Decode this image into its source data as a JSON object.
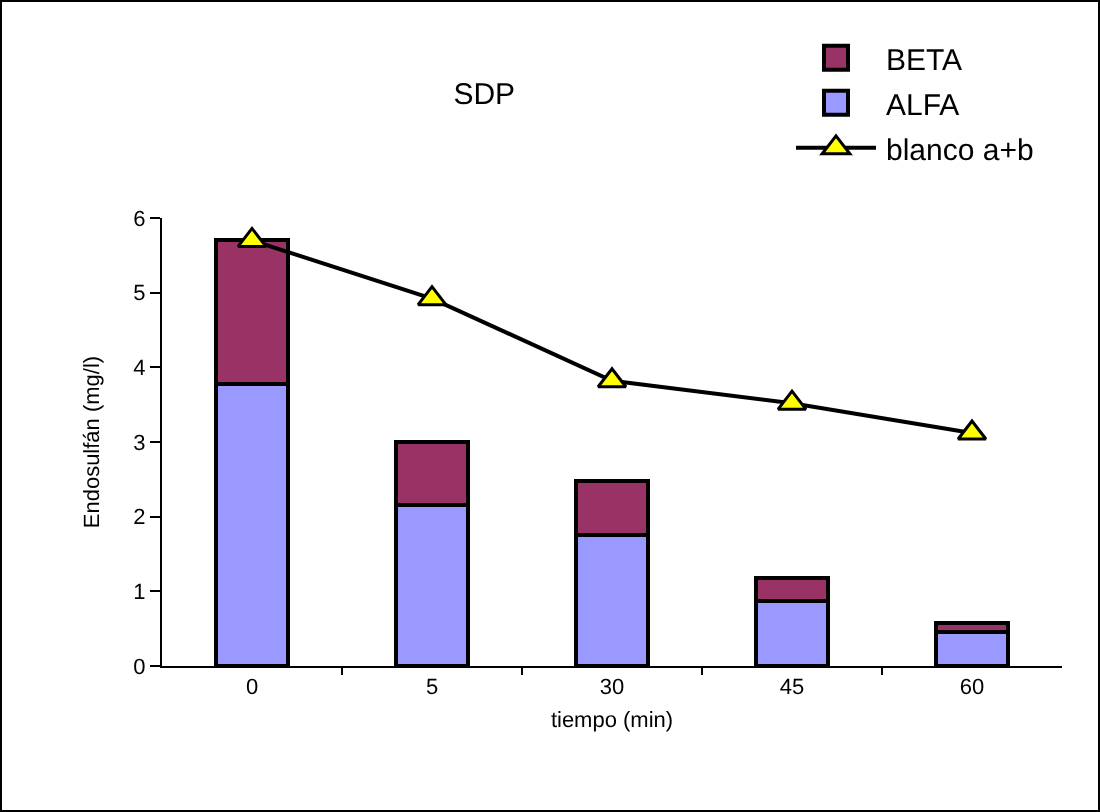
{
  "chart_data": {
    "type": "bar",
    "title": "SDP",
    "xlabel": "tiempo (min)",
    "ylabel": "Endosulfán (mg/l)",
    "categories": [
      "0",
      "5",
      "30",
      "45",
      "60"
    ],
    "stacked": true,
    "series": [
      {
        "name": "ALFA",
        "color": "#9999ff",
        "values": [
          3.78,
          2.15,
          1.75,
          0.87,
          0.45
        ]
      },
      {
        "name": "BETA",
        "color": "#993366",
        "values": [
          1.92,
          0.85,
          0.73,
          0.31,
          0.13
        ]
      },
      {
        "name": "blanco a+b",
        "type": "line",
        "color": "#000000",
        "marker": "triangle",
        "values": [
          5.7,
          4.92,
          3.82,
          3.52,
          3.12
        ]
      }
    ],
    "ylim": [
      0,
      6
    ],
    "yticks": [
      0,
      1,
      2,
      3,
      4,
      5,
      6
    ],
    "grid": false,
    "legend": "top right"
  }
}
